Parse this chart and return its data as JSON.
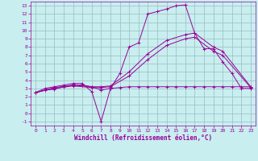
{
  "xlabel": "Windchill (Refroidissement éolien,°C)",
  "bg_color": "#c8eef0",
  "grid_color": "#9bbcbd",
  "line_color": "#990099",
  "xlim": [
    -0.5,
    23.5
  ],
  "ylim": [
    -1.5,
    13.5
  ],
  "xticks": [
    0,
    1,
    2,
    3,
    4,
    5,
    6,
    7,
    8,
    9,
    10,
    11,
    12,
    13,
    14,
    15,
    16,
    17,
    18,
    19,
    20,
    21,
    22,
    23
  ],
  "yticks": [
    -1,
    0,
    1,
    2,
    3,
    4,
    5,
    6,
    7,
    8,
    9,
    10,
    11,
    12,
    13
  ],
  "line1_x": [
    0,
    1,
    2,
    3,
    4,
    5,
    6,
    7,
    8,
    9,
    10,
    11,
    12,
    13,
    14,
    15,
    16,
    17,
    18,
    19,
    20,
    21,
    22,
    23
  ],
  "line1_y": [
    2.5,
    3.0,
    3.2,
    3.4,
    3.6,
    3.6,
    2.6,
    -1.0,
    3.0,
    4.8,
    8.0,
    8.5,
    12.0,
    12.3,
    12.6,
    13.0,
    13.1,
    9.7,
    7.8,
    7.8,
    6.2,
    4.8,
    3.0,
    3.0
  ],
  "line2_x": [
    0,
    2,
    4,
    6,
    7,
    8,
    10,
    12,
    14,
    16,
    17,
    19,
    20,
    23
  ],
  "line2_y": [
    2.5,
    3.1,
    3.4,
    3.2,
    3.2,
    3.3,
    5.0,
    7.2,
    8.8,
    9.5,
    9.7,
    8.0,
    7.5,
    3.2
  ],
  "line3_x": [
    0,
    2,
    4,
    6,
    7,
    8,
    10,
    12,
    14,
    16,
    17,
    19,
    20,
    23
  ],
  "line3_y": [
    2.5,
    3.0,
    3.3,
    3.1,
    3.1,
    3.2,
    4.5,
    6.5,
    8.2,
    9.0,
    9.2,
    7.5,
    7.0,
    3.1
  ],
  "line4_x": [
    0,
    1,
    2,
    3,
    4,
    5,
    6,
    7,
    8,
    9,
    10,
    11,
    12,
    13,
    14,
    15,
    16,
    17,
    18,
    19,
    20,
    21,
    22,
    23
  ],
  "line4_y": [
    2.5,
    2.8,
    2.9,
    3.2,
    3.4,
    3.4,
    3.2,
    2.8,
    3.0,
    3.1,
    3.2,
    3.2,
    3.2,
    3.2,
    3.2,
    3.2,
    3.2,
    3.2,
    3.2,
    3.2,
    3.2,
    3.2,
    3.2,
    3.2
  ]
}
